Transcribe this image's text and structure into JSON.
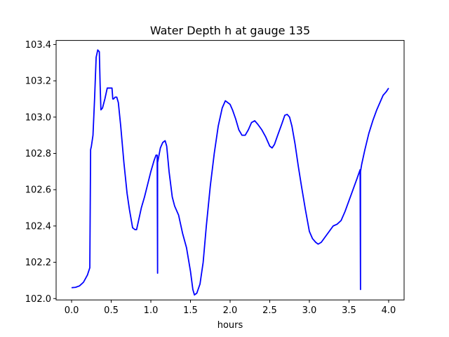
{
  "chart_data": {
    "type": "line",
    "title": "Water Depth h at gauge 135",
    "xlabel": "hours",
    "ylabel": "",
    "xlim": [
      -0.195,
      4.195
    ],
    "ylim": [
      101.9925,
      103.4225
    ],
    "xticks": [
      0.0,
      0.5,
      1.0,
      1.5,
      2.0,
      2.5,
      3.0,
      3.5,
      4.0
    ],
    "xtick_labels": [
      "0.0",
      "0.5",
      "1.0",
      "1.5",
      "2.0",
      "2.5",
      "3.0",
      "3.5",
      "4.0"
    ],
    "yticks": [
      102.0,
      102.2,
      102.4,
      102.6,
      102.8,
      103.0,
      103.2,
      103.4
    ],
    "ytick_labels": [
      "102.0",
      "102.2",
      "102.4",
      "102.6",
      "102.8",
      "103.0",
      "103.2",
      "103.4"
    ],
    "grid": false,
    "series": [
      {
        "color": "#0000ff",
        "x": [
          0.0,
          0.05,
          0.1,
          0.15,
          0.2,
          0.23,
          0.24,
          0.245,
          0.25,
          0.27,
          0.29,
          0.31,
          0.33,
          0.35,
          0.36,
          0.37,
          0.39,
          0.42,
          0.45,
          0.48,
          0.51,
          0.52,
          0.53,
          0.55,
          0.57,
          0.59,
          0.62,
          0.66,
          0.7,
          0.73,
          0.77,
          0.8,
          0.82,
          0.85,
          0.88,
          0.92,
          0.96,
          1.0,
          1.04,
          1.065,
          1.08,
          1.085,
          1.085,
          1.09,
          1.12,
          1.15,
          1.18,
          1.2,
          1.23,
          1.27,
          1.3,
          1.35,
          1.4,
          1.45,
          1.5,
          1.53,
          1.55,
          1.58,
          1.62,
          1.66,
          1.7,
          1.75,
          1.8,
          1.85,
          1.9,
          1.94,
          1.97,
          2.0,
          2.03,
          2.07,
          2.11,
          2.15,
          2.19,
          2.23,
          2.27,
          2.31,
          2.35,
          2.4,
          2.45,
          2.5,
          2.53,
          2.56,
          2.6,
          2.65,
          2.69,
          2.72,
          2.75,
          2.78,
          2.82,
          2.86,
          2.9,
          2.95,
          3.0,
          3.04,
          3.08,
          3.11,
          3.15,
          3.2,
          3.25,
          3.3,
          3.35,
          3.4,
          3.45,
          3.5,
          3.55,
          3.6,
          3.64,
          3.645,
          3.645,
          3.66,
          3.7,
          3.75,
          3.8,
          3.85,
          3.9,
          3.93,
          3.95,
          3.97,
          4.0
        ],
        "y": [
          102.06,
          102.062,
          102.07,
          102.09,
          102.13,
          102.17,
          102.82,
          102.83,
          102.84,
          102.9,
          103.1,
          103.33,
          103.37,
          103.36,
          103.18,
          103.04,
          103.05,
          103.1,
          103.16,
          103.16,
          103.16,
          103.1,
          103.1,
          103.11,
          103.11,
          103.08,
          102.95,
          102.75,
          102.58,
          102.49,
          102.39,
          102.38,
          102.38,
          102.44,
          102.5,
          102.56,
          102.63,
          102.7,
          102.76,
          102.79,
          102.79,
          102.14,
          102.75,
          102.76,
          102.83,
          102.86,
          102.87,
          102.84,
          102.7,
          102.56,
          102.51,
          102.46,
          102.36,
          102.28,
          102.15,
          102.05,
          102.02,
          102.03,
          102.08,
          102.2,
          102.4,
          102.62,
          102.8,
          102.95,
          103.05,
          103.09,
          103.08,
          103.07,
          103.04,
          102.99,
          102.93,
          102.9,
          102.9,
          102.93,
          102.97,
          102.98,
          102.96,
          102.93,
          102.89,
          102.84,
          102.83,
          102.85,
          102.9,
          102.96,
          103.01,
          103.015,
          103.0,
          102.95,
          102.85,
          102.73,
          102.62,
          102.49,
          102.37,
          102.33,
          102.31,
          102.3,
          102.31,
          102.34,
          102.37,
          102.4,
          102.41,
          102.43,
          102.48,
          102.54,
          102.6,
          102.66,
          102.71,
          102.05,
          102.7,
          102.74,
          102.82,
          102.91,
          102.98,
          103.04,
          103.09,
          103.12,
          103.13,
          103.14,
          103.16
        ]
      }
    ]
  }
}
